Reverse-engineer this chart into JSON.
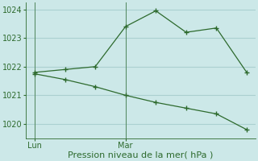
{
  "line1_x": [
    0,
    1,
    2,
    3,
    4,
    5,
    6,
    7
  ],
  "line1_y": [
    1021.8,
    1021.9,
    1022.0,
    1023.4,
    1023.95,
    1023.2,
    1023.35,
    1021.8
  ],
  "line2_x": [
    0,
    1,
    2,
    3,
    4,
    5,
    6,
    7
  ],
  "line2_y": [
    1021.75,
    1021.55,
    1021.3,
    1021.0,
    1020.75,
    1020.55,
    1020.35,
    1019.8
  ],
  "line_color": "#2d6a2d",
  "bg_color": "#cce8e8",
  "grid_color": "#aad0d0",
  "xlabel": "Pression niveau de la mer( hPa )",
  "ylim": [
    1019.5,
    1024.25
  ],
  "yticks": [
    1020,
    1021,
    1022,
    1023,
    1024
  ],
  "lun_x": 0,
  "mar_x": 3,
  "vline1_x": 0,
  "vline2_x": 3,
  "xlim": [
    -0.3,
    7.3
  ]
}
